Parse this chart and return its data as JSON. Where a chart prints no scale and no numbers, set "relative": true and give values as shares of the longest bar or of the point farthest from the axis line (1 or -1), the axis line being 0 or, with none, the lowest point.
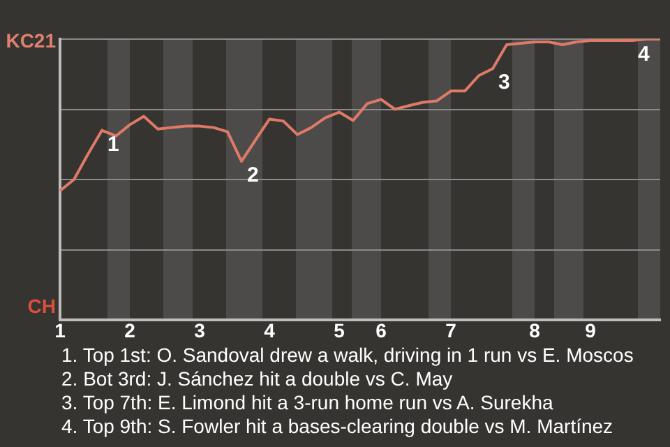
{
  "chart_data": {
    "type": "line",
    "categories": [
      "1",
      null,
      null,
      null,
      null,
      "2",
      null,
      null,
      null,
      null,
      "3",
      null,
      null,
      null,
      null,
      "4",
      null,
      null,
      null,
      null,
      "5",
      null,
      null,
      "6",
      null,
      null,
      null,
      null,
      "7",
      null,
      null,
      null,
      null,
      null,
      "8",
      null,
      null,
      null,
      "9",
      null,
      null,
      null,
      null,
      null
    ],
    "series": [
      {
        "color": "#e07a68",
        "values": [
          0.46,
          0.5,
          0.59,
          0.675,
          0.655,
          0.695,
          0.725,
          0.68,
          0.685,
          0.69,
          0.69,
          0.685,
          0.67,
          0.565,
          0.64,
          0.715,
          0.708,
          0.66,
          0.685,
          0.72,
          0.74,
          0.71,
          0.77,
          0.785,
          0.75,
          0.763,
          0.775,
          0.78,
          0.815,
          0.815,
          0.87,
          0.895,
          0.98,
          0.985,
          0.99,
          0.99,
          0.98,
          0.99,
          0.995,
          0.995,
          0.995,
          0.995,
          1,
          1
        ]
      }
    ],
    "relative": true,
    "grid": "y",
    "legend": false,
    "marker": "none",
    "line_style": "solid",
    "annotations": [
      "KC21",
      "CH",
      "1",
      "2",
      "3",
      "4",
      "1. Top 1st: O. Sandoval drew a walk, driving in 1 run vs E. Moscos",
      "2. Bot 3rd: J. Sánchez hit a double vs C. May",
      "3. Top 7th: E. Limond hit a 3-run home run vs A. Surekha",
      "4. Top 9th: S. Fowler hit a bases-clearing double vs M. Martínez"
    ]
  }
}
